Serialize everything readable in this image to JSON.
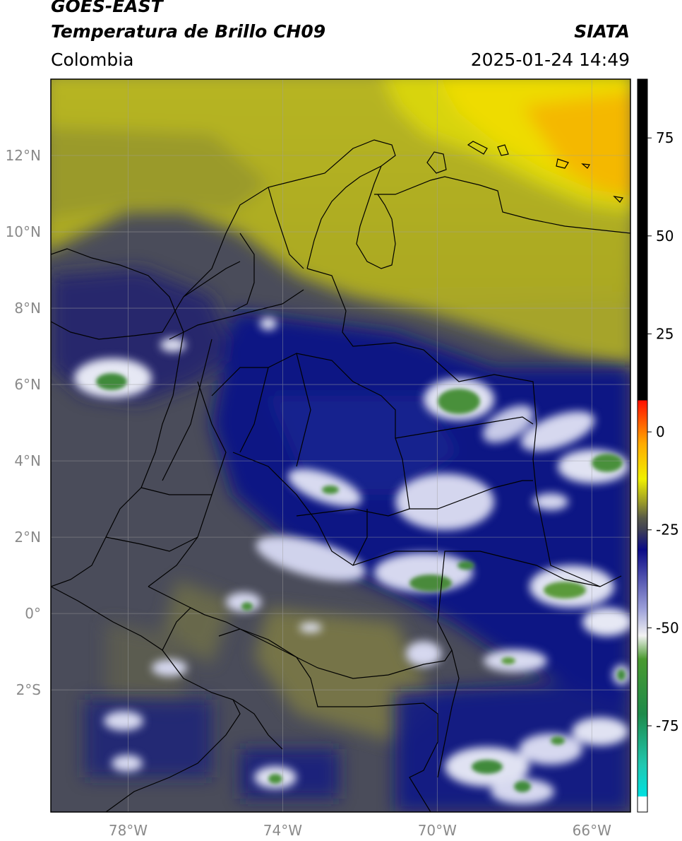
{
  "header": {
    "satellite": "GOES-EAST",
    "product": "Temperatura de Brillo CH09",
    "agency": "SIATA",
    "region": "Colombia",
    "timestamp": "2025-01-24 14:49"
  },
  "map": {
    "extent": {
      "lon_min": -80.0,
      "lon_max": -65.0,
      "lat_min": -5.2,
      "lat_max": 14.0
    },
    "lat_ticks": [
      {
        "value": 12,
        "label": "12°N"
      },
      {
        "value": 10,
        "label": "10°N"
      },
      {
        "value": 8,
        "label": "8°N"
      },
      {
        "value": 6,
        "label": "6°N"
      },
      {
        "value": 4,
        "label": "4°N"
      },
      {
        "value": 2,
        "label": "2°N"
      },
      {
        "value": 0,
        "label": "0°"
      },
      {
        "value": -2,
        "label": "2°S"
      }
    ],
    "lon_ticks": [
      {
        "value": -78,
        "label": "78°W"
      },
      {
        "value": -74,
        "label": "74°W"
      },
      {
        "value": -70,
        "label": "70°W"
      },
      {
        "value": -66,
        "label": "66°W"
      }
    ],
    "gridlines": true,
    "colors": {
      "warm_background": "#4a4c5a",
      "cold_cloud": "#0b1a8a",
      "very_cold_top": "#e8eaf5",
      "coldest_core": "#4a8a3a",
      "clear_north": "#b8b81e",
      "clear_hot": "#f2c400"
    }
  },
  "colorbar": {
    "range": [
      -97,
      90
    ],
    "ticks": [
      {
        "value": 75,
        "label": "75"
      },
      {
        "value": 50,
        "label": "50"
      },
      {
        "value": 25,
        "label": "25"
      },
      {
        "value": 0,
        "label": "0"
      },
      {
        "value": -25,
        "label": "-25"
      },
      {
        "value": -50,
        "label": "-50"
      },
      {
        "value": -75,
        "label": "-75"
      }
    ],
    "stops": [
      {
        "value": -97,
        "color": "#ffffff"
      },
      {
        "value": -93,
        "color": "#ffffff"
      },
      {
        "value": -93,
        "color": "#00e0e0"
      },
      {
        "value": -85,
        "color": "#20c8b0"
      },
      {
        "value": -72,
        "color": "#1e8a4a"
      },
      {
        "value": -58,
        "color": "#4a9a30"
      },
      {
        "value": -52,
        "color": "#f2f2f2"
      },
      {
        "value": -45,
        "color": "#9a9ed8"
      },
      {
        "value": -30,
        "color": "#0a0a86"
      },
      {
        "value": -25,
        "color": "#3e3f55"
      },
      {
        "value": -22,
        "color": "#585a48"
      },
      {
        "value": -18,
        "color": "#9a9a28"
      },
      {
        "value": -12,
        "color": "#f0f000"
      },
      {
        "value": -3,
        "color": "#ffaa00"
      },
      {
        "value": 8,
        "color": "#ff1000"
      },
      {
        "value": 8,
        "color": "#000000"
      },
      {
        "value": 90,
        "color": "#000000"
      }
    ]
  }
}
